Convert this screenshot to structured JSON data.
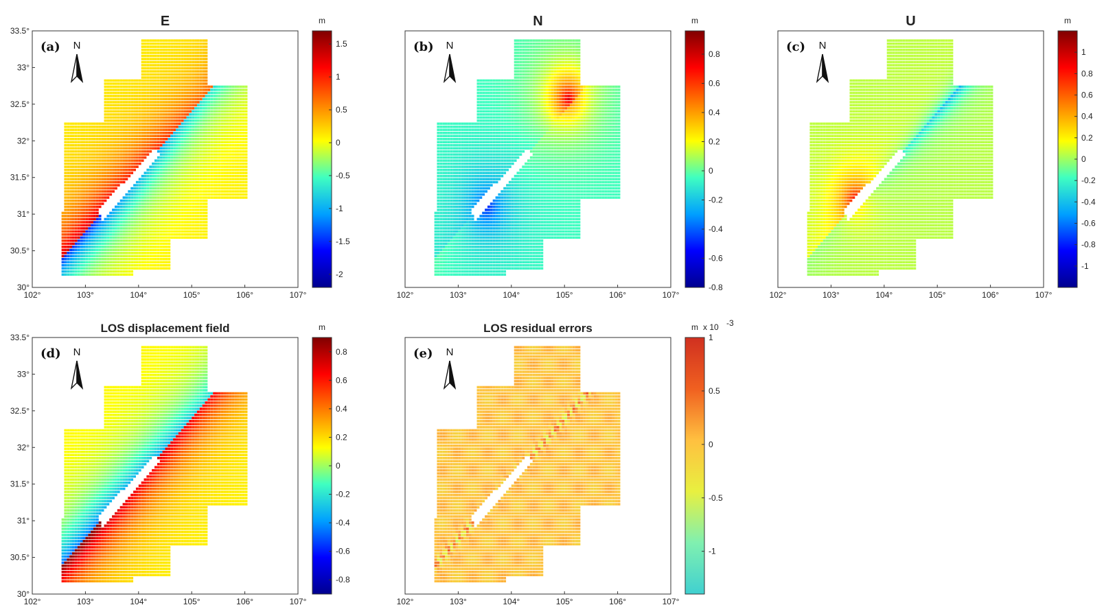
{
  "chart_data": [
    {
      "type": "heatmap",
      "panel": "(a)",
      "title": "E",
      "unit": "m",
      "north_label": "N",
      "xticks": [
        "102°",
        "103°",
        "104°",
        "105°",
        "106°",
        "107°"
      ],
      "yticks": [
        "30°",
        "30.5°",
        "31°",
        "31.5°",
        "32°",
        "32.5°",
        "33°",
        "33.5°"
      ],
      "xlim": [
        102,
        107
      ],
      "ylim": [
        30,
        33.5
      ],
      "colorbar": {
        "range": [
          -2.2,
          1.7
        ],
        "ticks": [
          1.5,
          1,
          0.5,
          0,
          -0.5,
          -1,
          -1.5,
          -2
        ],
        "tick_labels": [
          "1.5",
          "1",
          "0.5",
          "0",
          "-0.5",
          "-1",
          "-1.5",
          "-2"
        ],
        "scale_label": ""
      },
      "colormap": [
        "#00008f",
        "#0000ff",
        "#00a0ff",
        "#40ffc0",
        "#ffff00",
        "#ff8000",
        "#ff0000",
        "#800000"
      ],
      "pattern": {
        "nw_value": 1.3,
        "se_value": -1.6,
        "background": 0.1
      }
    },
    {
      "type": "heatmap",
      "panel": "(b)",
      "title": "N",
      "unit": "m",
      "north_label": "N",
      "xticks": [
        "102°",
        "103°",
        "104°",
        "105°",
        "106°",
        "107°"
      ],
      "yticks": [],
      "xlim": [
        102,
        107
      ],
      "ylim": [
        30,
        33.5
      ],
      "colorbar": {
        "range": [
          -0.8,
          0.96
        ],
        "ticks": [
          0.8,
          0.6,
          0.4,
          0.2,
          0,
          -0.2,
          -0.4,
          -0.6,
          -0.8
        ],
        "tick_labels": [
          "0.8",
          "0.6",
          "0.4",
          "0.2",
          "0",
          "-0.2",
          "-0.4",
          "-0.6",
          "-0.8"
        ],
        "scale_label": ""
      },
      "colormap": [
        "#00008f",
        "#0000ff",
        "#00a0ff",
        "#40ffc0",
        "#ffff00",
        "#ff8000",
        "#ff0000",
        "#800000"
      ],
      "pattern": {
        "ne_value": 0.9,
        "sw_value": -0.6,
        "background": -0.05
      }
    },
    {
      "type": "heatmap",
      "panel": "(c)",
      "title": "U",
      "unit": "m",
      "north_label": "N",
      "xticks": [
        "102°",
        "103°",
        "104°",
        "105°",
        "106°",
        "107°"
      ],
      "yticks": [],
      "xlim": [
        102,
        107
      ],
      "ylim": [
        30,
        33.5
      ],
      "colorbar": {
        "range": [
          -1.2,
          1.2
        ],
        "ticks": [
          1,
          0.8,
          0.6,
          0.4,
          0.2,
          0,
          -0.2,
          -0.4,
          -0.6,
          -0.8,
          -1
        ],
        "tick_labels": [
          "1",
          "0.8",
          "0.6",
          "0.4",
          "0.2",
          "0",
          "-0.2",
          "-0.4",
          "-0.6",
          "-0.8",
          "-1"
        ],
        "scale_label": ""
      },
      "colormap": [
        "#00008f",
        "#0000ff",
        "#00a0ff",
        "#40ffc0",
        "#ffff00",
        "#ff8000",
        "#ff0000",
        "#800000"
      ],
      "pattern": {
        "sw_value": 0.9,
        "fault_value": -0.4,
        "background": 0.05
      }
    },
    {
      "type": "heatmap",
      "panel": "(d)",
      "title": "LOS displacement field",
      "unit": "m",
      "north_label": "N",
      "xticks": [
        "102°",
        "103°",
        "104°",
        "105°",
        "106°",
        "107°"
      ],
      "yticks": [
        "30°",
        "30.5°",
        "31°",
        "31.5°",
        "32°",
        "32.5°",
        "33°",
        "33.5°"
      ],
      "xlim": [
        102,
        107
      ],
      "ylim": [
        30,
        33.5
      ],
      "colorbar": {
        "range": [
          -0.9,
          0.9
        ],
        "ticks": [
          0.8,
          0.6,
          0.4,
          0.2,
          0,
          -0.2,
          -0.4,
          -0.6,
          -0.8
        ],
        "tick_labels": [
          "0.8",
          "0.6",
          "0.4",
          "0.2",
          "0",
          "-0.2",
          "-0.4",
          "-0.6",
          "-0.8"
        ],
        "scale_label": ""
      },
      "colormap": [
        "#00008f",
        "#0000ff",
        "#00a0ff",
        "#40ffc0",
        "#ffff00",
        "#ff8000",
        "#ff0000",
        "#800000"
      ],
      "pattern": {
        "nw_value": -0.65,
        "se_value": 0.75,
        "background": 0.15
      }
    },
    {
      "type": "heatmap",
      "panel": "(e)",
      "title": "LOS residual errors",
      "unit": "m",
      "north_label": "N",
      "xticks": [
        "102°",
        "103°",
        "104°",
        "105°",
        "106°",
        "107°"
      ],
      "yticks": [],
      "xlim": [
        102,
        107
      ],
      "ylim": [
        30,
        33.5
      ],
      "colorbar": {
        "range": [
          -1.4,
          1.0
        ],
        "ticks": [
          1,
          0.5,
          0,
          -0.5,
          -1
        ],
        "tick_labels": [
          "1",
          "0.5",
          "0",
          "-0.5",
          "-1"
        ],
        "scale_label": "x 10"
      },
      "colormap": [
        "#40d0d0",
        "#80f0b0",
        "#e8f040",
        "#ffc040",
        "#f06020",
        "#d03020"
      ],
      "pattern": {
        "background": 0.0,
        "fault_noise": 0.6
      }
    }
  ]
}
